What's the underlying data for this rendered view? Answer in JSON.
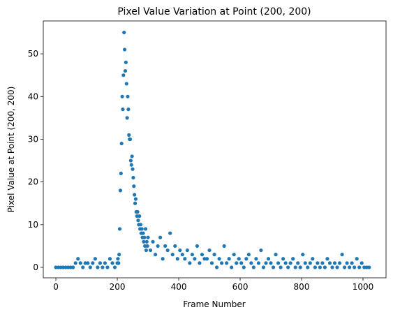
{
  "chart_data": {
    "type": "scatter",
    "title": "Pixel Value Variation at Point (200, 200)",
    "xlabel": "Frame Number",
    "ylabel": "Pixel Value at Point (200, 200)",
    "color": "#1f77b4",
    "xlim": [
      -41,
      1075
    ],
    "ylim": [
      -2.45,
      57.7
    ],
    "xticks": [
      0,
      200,
      400,
      600,
      800,
      1000
    ],
    "yticks": [
      0,
      10,
      20,
      30,
      40,
      50
    ],
    "x": [
      0,
      8,
      16,
      24,
      32,
      40,
      48,
      56,
      64,
      72,
      80,
      88,
      96,
      104,
      112,
      120,
      128,
      136,
      144,
      152,
      160,
      168,
      176,
      184,
      192,
      200,
      202,
      204,
      206,
      208,
      210,
      212,
      214,
      216,
      218,
      220,
      222,
      224,
      226,
      228,
      230,
      232,
      234,
      236,
      238,
      240,
      242,
      244,
      246,
      248,
      250,
      252,
      254,
      256,
      258,
      260,
      262,
      264,
      266,
      268,
      270,
      272,
      274,
      276,
      278,
      280,
      282,
      284,
      286,
      288,
      290,
      292,
      294,
      296,
      298,
      300,
      308,
      316,
      324,
      332,
      340,
      348,
      356,
      364,
      372,
      380,
      388,
      396,
      404,
      412,
      420,
      428,
      436,
      444,
      452,
      460,
      468,
      476,
      484,
      492,
      500,
      508,
      516,
      524,
      532,
      540,
      548,
      556,
      564,
      572,
      580,
      588,
      596,
      604,
      612,
      620,
      628,
      636,
      644,
      652,
      660,
      668,
      676,
      684,
      692,
      700,
      708,
      716,
      724,
      732,
      740,
      748,
      756,
      764,
      772,
      780,
      788,
      796,
      804,
      812,
      820,
      828,
      836,
      844,
      852,
      860,
      868,
      876,
      884,
      892,
      900,
      908,
      916,
      924,
      932,
      940,
      948,
      956,
      964,
      972,
      980,
      988,
      996,
      1004,
      1012,
      1020
    ],
    "values": [
      0,
      0,
      0,
      0,
      0,
      0,
      0,
      0,
      1,
      2,
      1,
      0,
      1,
      1,
      0,
      1,
      2,
      0,
      1,
      0,
      1,
      0,
      2,
      1,
      0,
      1,
      2,
      1,
      3,
      9,
      18,
      22,
      29,
      40,
      37,
      45,
      55,
      51,
      46,
      48,
      43,
      35,
      40,
      37,
      31,
      30,
      30,
      25,
      24,
      26,
      23,
      21,
      19,
      17,
      15,
      16,
      13,
      12,
      13,
      11,
      10,
      12,
      9,
      10,
      8,
      9,
      7,
      8,
      6,
      7,
      5,
      9,
      4,
      6,
      5,
      7,
      4,
      6,
      3,
      5,
      7,
      2,
      5,
      4,
      8,
      3,
      5,
      2,
      4,
      3,
      2,
      4,
      1,
      3,
      2,
      5,
      1,
      3,
      2,
      2,
      4,
      1,
      3,
      0,
      2,
      1,
      5,
      1,
      2,
      0,
      3,
      1,
      2,
      1,
      0,
      2,
      3,
      1,
      0,
      2,
      1,
      4,
      0,
      1,
      2,
      1,
      0,
      3,
      1,
      0,
      2,
      1,
      0,
      1,
      2,
      0,
      1,
      0,
      3,
      1,
      0,
      1,
      2,
      0,
      1,
      0,
      1,
      0,
      2,
      1,
      0,
      1,
      0,
      1,
      3,
      0,
      1,
      0,
      1,
      0,
      2,
      0,
      1,
      0,
      0,
      0
    ]
  }
}
